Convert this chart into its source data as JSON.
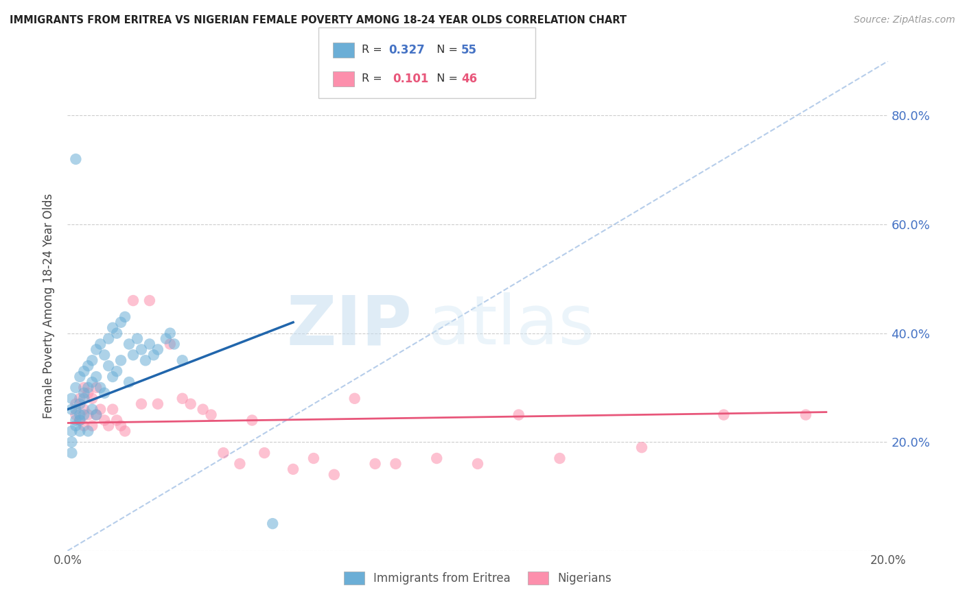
{
  "title": "IMMIGRANTS FROM ERITREA VS NIGERIAN FEMALE POVERTY AMONG 18-24 YEAR OLDS CORRELATION CHART",
  "source": "Source: ZipAtlas.com",
  "ylabel": "Female Poverty Among 18-24 Year Olds",
  "r_eritrea": 0.327,
  "n_eritrea": 55,
  "r_nigerian": 0.101,
  "n_nigerian": 46,
  "legend_label_eritrea": "Immigrants from Eritrea",
  "legend_label_nigerian": "Nigerians",
  "blue_color": "#6baed6",
  "pink_color": "#fc8fac",
  "blue_line_color": "#2166ac",
  "pink_line_color": "#e8567a",
  "diag_color": "#aec8e8",
  "xmin": 0.0,
  "xmax": 0.2,
  "ymin": 0.0,
  "ymax": 0.9,
  "yticks": [
    0.0,
    0.2,
    0.4,
    0.6,
    0.8
  ],
  "ytick_labels_right": [
    "",
    "20.0%",
    "40.0%",
    "60.0%",
    "80.0%"
  ],
  "xticks": [
    0.0,
    0.05,
    0.1,
    0.15,
    0.2
  ],
  "xtick_labels": [
    "0.0%",
    "",
    "",
    "",
    "20.0%"
  ],
  "eritrea_x": [
    0.001,
    0.001,
    0.001,
    0.001,
    0.002,
    0.002,
    0.002,
    0.002,
    0.002,
    0.003,
    0.003,
    0.003,
    0.003,
    0.003,
    0.004,
    0.004,
    0.004,
    0.004,
    0.005,
    0.005,
    0.005,
    0.006,
    0.006,
    0.006,
    0.007,
    0.007,
    0.007,
    0.008,
    0.008,
    0.009,
    0.009,
    0.01,
    0.01,
    0.011,
    0.011,
    0.012,
    0.012,
    0.013,
    0.013,
    0.014,
    0.015,
    0.015,
    0.016,
    0.017,
    0.018,
    0.019,
    0.02,
    0.021,
    0.022,
    0.024,
    0.025,
    0.026,
    0.028,
    0.001,
    0.05
  ],
  "eritrea_y": [
    0.26,
    0.28,
    0.22,
    0.2,
    0.3,
    0.24,
    0.72,
    0.26,
    0.23,
    0.32,
    0.27,
    0.25,
    0.24,
    0.22,
    0.33,
    0.29,
    0.28,
    0.25,
    0.34,
    0.3,
    0.22,
    0.35,
    0.31,
    0.26,
    0.37,
    0.32,
    0.25,
    0.38,
    0.3,
    0.36,
    0.29,
    0.39,
    0.34,
    0.41,
    0.32,
    0.4,
    0.33,
    0.42,
    0.35,
    0.43,
    0.38,
    0.31,
    0.36,
    0.39,
    0.37,
    0.35,
    0.38,
    0.36,
    0.37,
    0.39,
    0.4,
    0.38,
    0.35,
    0.18,
    0.05
  ],
  "nigerian_x": [
    0.002,
    0.002,
    0.003,
    0.003,
    0.004,
    0.004,
    0.004,
    0.005,
    0.005,
    0.006,
    0.006,
    0.007,
    0.007,
    0.008,
    0.009,
    0.01,
    0.011,
    0.012,
    0.013,
    0.014,
    0.016,
    0.018,
    0.02,
    0.022,
    0.025,
    0.028,
    0.03,
    0.033,
    0.035,
    0.038,
    0.042,
    0.045,
    0.048,
    0.055,
    0.06,
    0.065,
    0.07,
    0.075,
    0.08,
    0.09,
    0.1,
    0.11,
    0.12,
    0.14,
    0.16,
    0.18
  ],
  "nigerian_y": [
    0.27,
    0.25,
    0.28,
    0.24,
    0.3,
    0.26,
    0.23,
    0.29,
    0.25,
    0.28,
    0.23,
    0.3,
    0.25,
    0.26,
    0.24,
    0.23,
    0.26,
    0.24,
    0.23,
    0.22,
    0.46,
    0.27,
    0.46,
    0.27,
    0.38,
    0.28,
    0.27,
    0.26,
    0.25,
    0.18,
    0.16,
    0.24,
    0.18,
    0.15,
    0.17,
    0.14,
    0.28,
    0.16,
    0.16,
    0.17,
    0.16,
    0.25,
    0.17,
    0.19,
    0.25,
    0.25
  ],
  "blue_trend_x": [
    0.0,
    0.055
  ],
  "blue_trend_y": [
    0.26,
    0.42
  ],
  "pink_trend_x": [
    0.0,
    0.185
  ],
  "pink_trend_y": [
    0.235,
    0.255
  ]
}
